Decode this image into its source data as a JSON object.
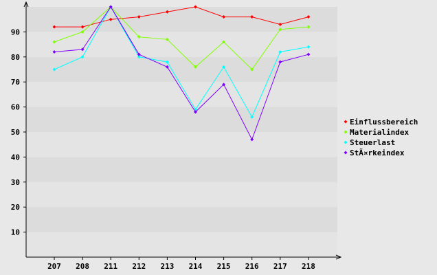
{
  "chart_data": {
    "type": "line",
    "title": "",
    "xlabel": "",
    "ylabel": "",
    "categories": [
      "207",
      "208",
      "211",
      "212",
      "213",
      "214",
      "215",
      "216",
      "217",
      "218"
    ],
    "y_ticks": [
      "10",
      "20",
      "30",
      "40",
      "50",
      "60",
      "70",
      "80",
      "90"
    ],
    "ylim": [
      0,
      100
    ],
    "grid": "horizontal bands",
    "legend_position": "right",
    "series": [
      {
        "name": "Einflussbereich",
        "color": "#ff0000",
        "values": [
          92,
          92,
          95,
          96,
          98,
          100,
          96,
          96,
          93,
          96
        ]
      },
      {
        "name": "Materialindex",
        "color": "#80ff00",
        "values": [
          86,
          90,
          100,
          88,
          87,
          76,
          86,
          75,
          91,
          92
        ]
      },
      {
        "name": "Steuerlast",
        "color": "#00ffff",
        "values": [
          75,
          80,
          100,
          80,
          78,
          59,
          76,
          56,
          82,
          84
        ]
      },
      {
        "name": "StÃ¤rkeindex",
        "color": "#7f00ff",
        "values": [
          82,
          83,
          100,
          81,
          76,
          58,
          69,
          47,
          78,
          81
        ]
      }
    ],
    "extra_lines": [
      {
        "color": "#0000ff",
        "values": [
          null,
          null,
          100,
          81,
          null,
          null,
          null,
          null,
          null,
          null
        ]
      }
    ]
  }
}
